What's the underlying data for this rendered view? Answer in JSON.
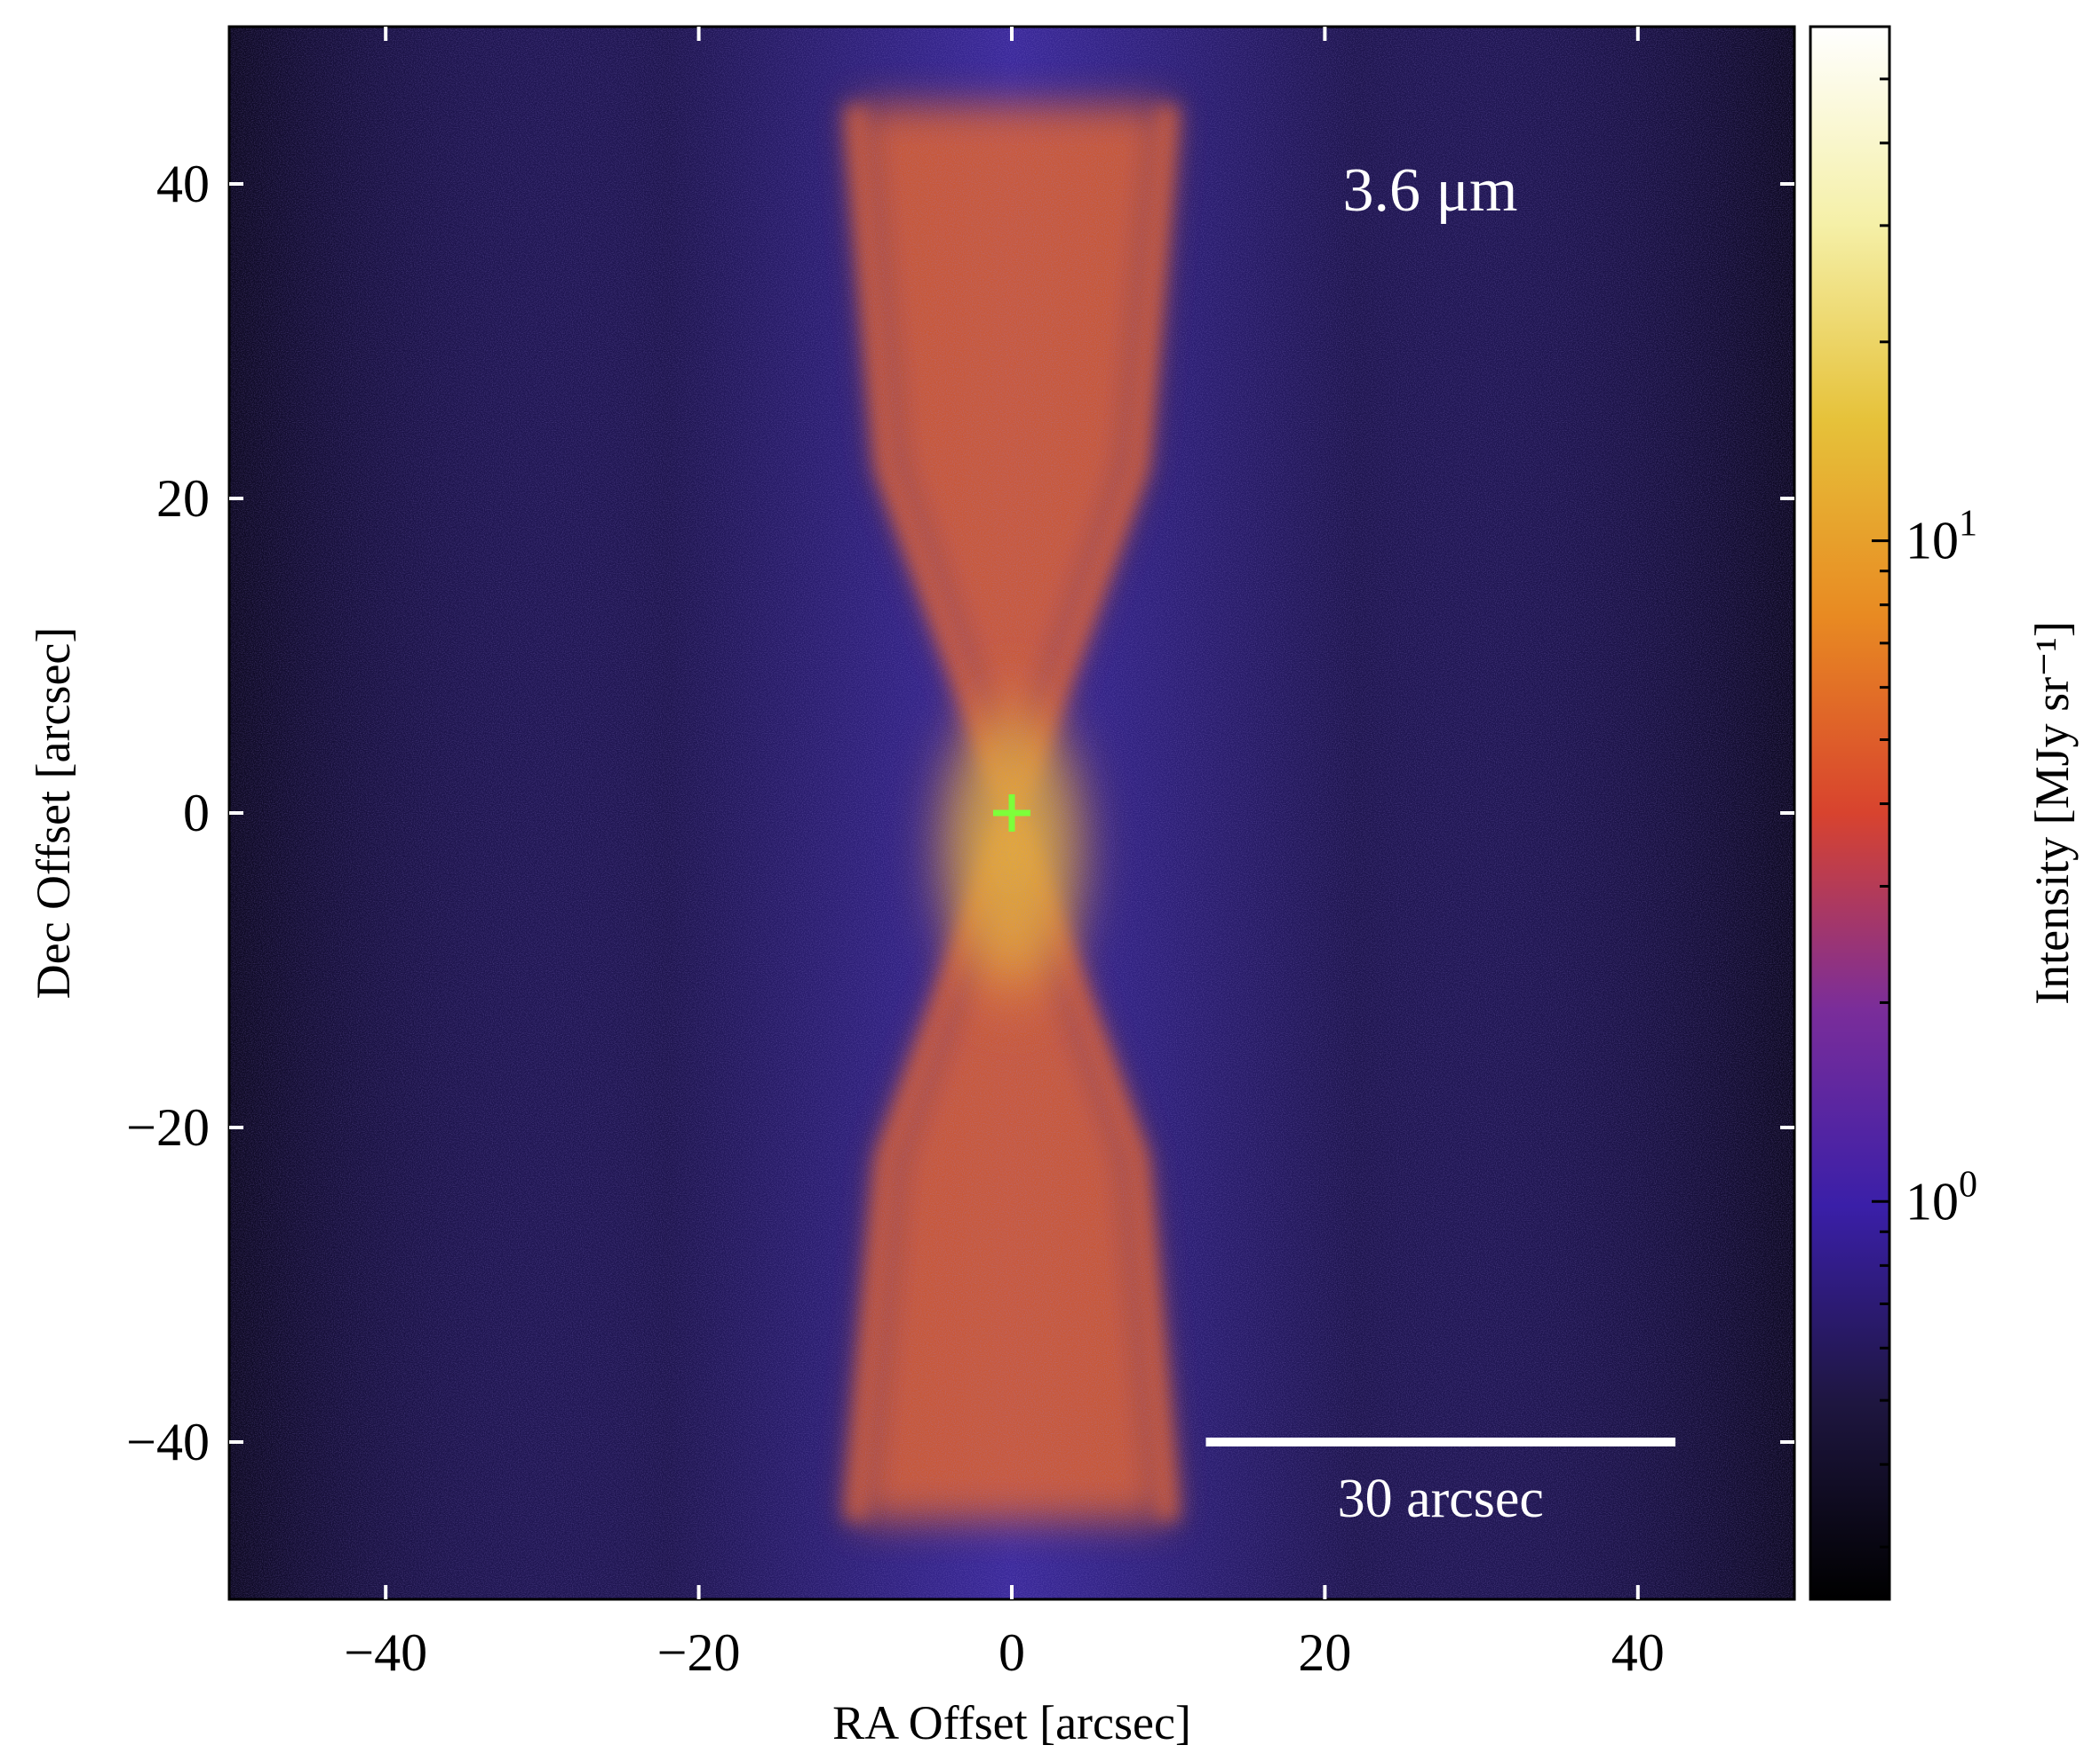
{
  "chart_data": {
    "type": "heatmap",
    "wavelength_label": "3.6 μm",
    "scale_bar_label": "30 arcsec",
    "scale_bar_length": 30,
    "xlabel": "RA Offset [arcsec]",
    "ylabel": "Dec Offset [arcsec]",
    "colorbar_label": "Intensity [MJy sr⁻¹]",
    "xlim": [
      -50,
      50
    ],
    "ylim": [
      -50,
      50
    ],
    "x_ticks": [
      -40,
      -20,
      0,
      20,
      40
    ],
    "y_ticks": [
      -40,
      -20,
      0,
      20,
      40
    ],
    "x_tick_labels": [
      "−40",
      "−20",
      "0",
      "20",
      "40"
    ],
    "y_tick_labels": [
      "−40",
      "−20",
      "0",
      "20",
      "40"
    ],
    "colorbar": {
      "scale": "log",
      "range": [
        0.25,
        60
      ],
      "major_ticks": [
        1,
        10
      ],
      "major_tick_labels": [
        "10",
        "10"
      ],
      "major_tick_exponents": [
        "0",
        "1"
      ],
      "colormap_stops": [
        "#000000",
        "#1e1640",
        "#3a1fa8",
        "#7a2d9a",
        "#d8432e",
        "#e88a22",
        "#e6c23a",
        "#f5f0a8",
        "#ffffff"
      ]
    },
    "source_marker": {
      "x": 0,
      "y": 0,
      "color": "#7dff3a"
    },
    "image_colors": {
      "background": "#0c0820",
      "halo": "#3c2aa0",
      "cone": "#e2622a",
      "core": "#e8b034"
    },
    "grid": false
  }
}
